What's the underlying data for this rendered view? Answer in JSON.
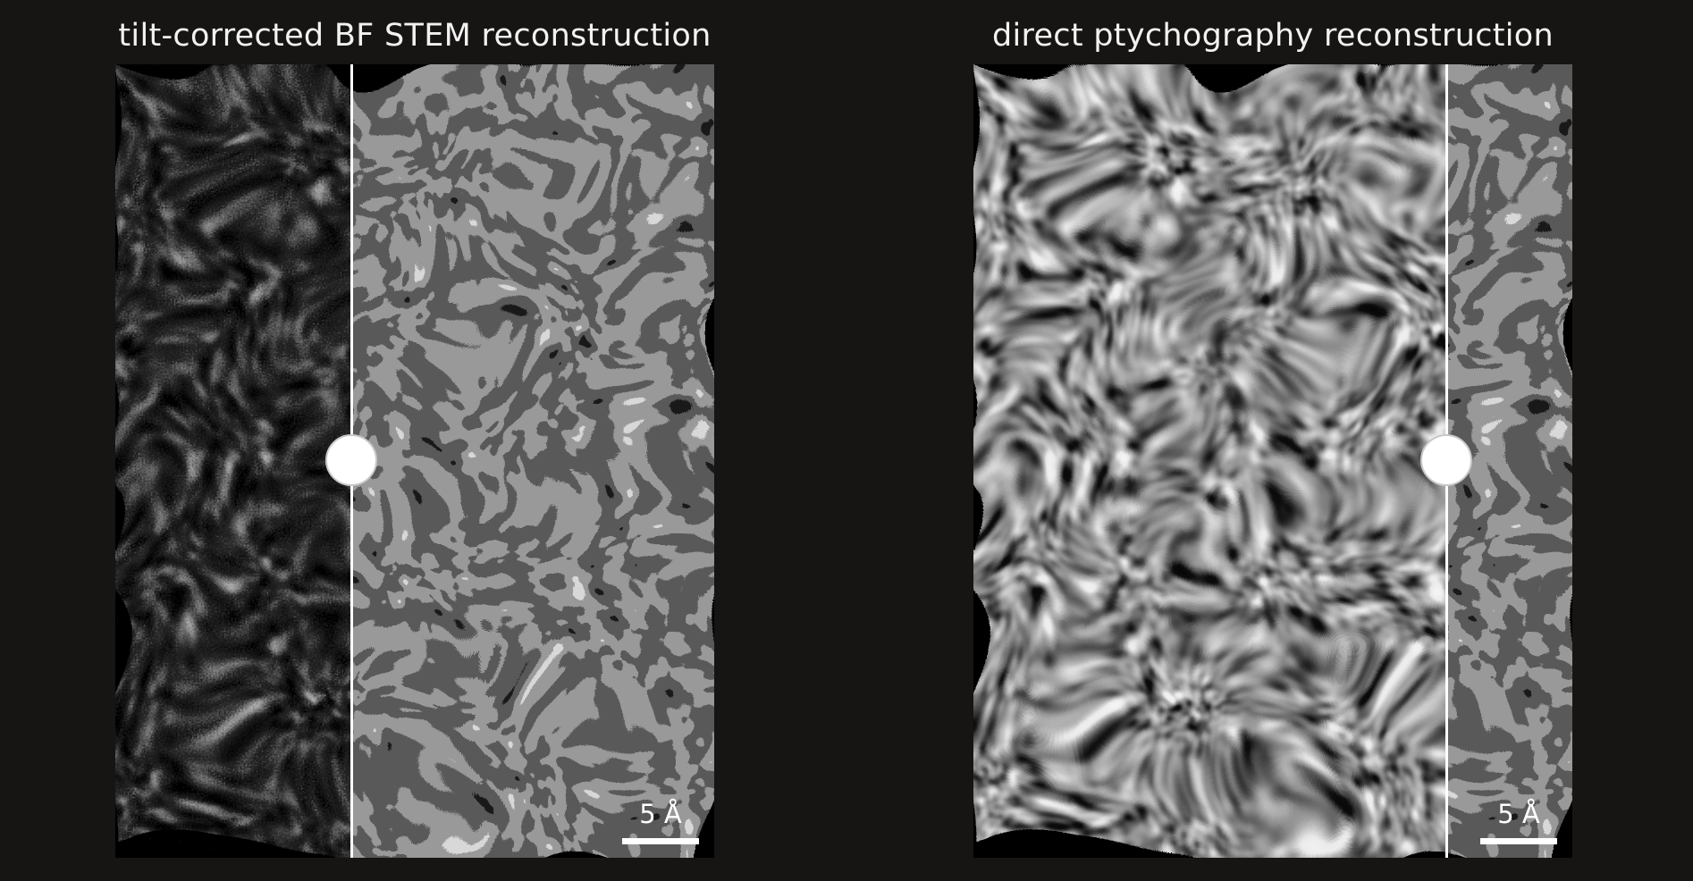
{
  "left_panel": {
    "title": "tilt-corrected BF STEM reconstruction",
    "scale_bar_label": "5 Å",
    "divider_position": 0.394
  },
  "right_panel": {
    "title": "direct ptychography reconstruction",
    "scale_bar_label": "5 Å",
    "divider_position": 0.79
  },
  "colors": {
    "background": "#161514",
    "text": "#f2f2f2",
    "divider": "#ffffff"
  }
}
